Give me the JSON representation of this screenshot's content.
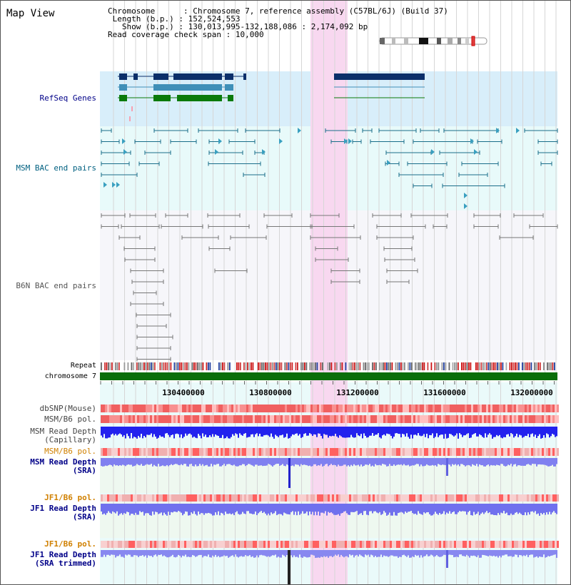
{
  "title": "Map View",
  "info": {
    "chromosome_label": "Chromosome",
    "chromosome_value": "Chromosome 7, reference assembly (C57BL/6J) (Build 37)",
    "length_label": "Length (b.p.)",
    "length_value": "152,524,553",
    "show_label": "Show (b.p.)",
    "show_value": "130,013,995-132,188,086 : 2,174,092 bp",
    "coverage_label": "Read coverage check span",
    "coverage_value": "10,000"
  },
  "tracks": {
    "refseq": "RefSeq Genes",
    "msm_bac": "MSM BAC end pairs",
    "b6n_bac": "B6N BAC end pairs",
    "repeat": "Repeat",
    "chromosome": "chromosome 7",
    "dbsnp": "dbSNP(Mouse)",
    "msm_b6_pol_1": "MSM/B6 pol.",
    "msm_depth_cap_1": "MSM Read Depth",
    "msm_depth_cap_2": "(Capillary)",
    "msm_b6_pol_2": "MSM/B6 pol.",
    "msm_depth_sra_1": "MSM Read Depth",
    "msm_depth_sra_2": "(SRA)",
    "jf1_b6_pol_1": "JF1/B6 pol.",
    "jf1_depth_sra_1": "JF1 Read Depth",
    "jf1_depth_sra_2": "(SRA)",
    "jf1_b6_pol_2": "JF1/B6 pol.",
    "jf1_depth_trim_1": "JF1 Read Depth",
    "jf1_depth_trim_2": "(SRA trimmed)"
  },
  "axis": {
    "ticks": [
      "130400000",
      "130800000",
      "131200000",
      "131600000",
      "132000000"
    ]
  },
  "colors": {
    "refseq_bg": "#d8eefa",
    "msm_bg": "#e8fafa",
    "b6n_bg": "#f6f6fa",
    "highlight": "#f8d8f0",
    "msm_color": "#1a6e8a",
    "refseq_dark": "#0b2f6a",
    "refseq_mid": "#3f8fb8",
    "refseq_green": "#0a7a0a",
    "chrom_green": "#0a6e0a",
    "label_navy": "#000088",
    "label_teal": "#006080",
    "label_orange": "#d08000",
    "depth_blue": "#2222ee",
    "depth_light": "#8080f0"
  }
}
